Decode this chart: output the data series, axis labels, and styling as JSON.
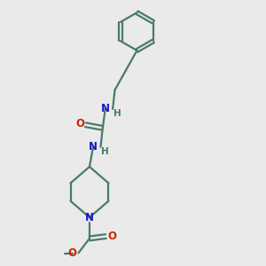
{
  "background_color": "#eaeaea",
  "bond_color": "#4a7a6a",
  "N_color": "#1a1acc",
  "O_color": "#cc2200",
  "text_color": "#4a7a6a",
  "figsize": [
    3.0,
    3.0
  ],
  "dpi": 100,
  "xlim": [
    0,
    10
  ],
  "ylim": [
    0,
    10
  ],
  "lw": 1.6,
  "fs": 8.5
}
